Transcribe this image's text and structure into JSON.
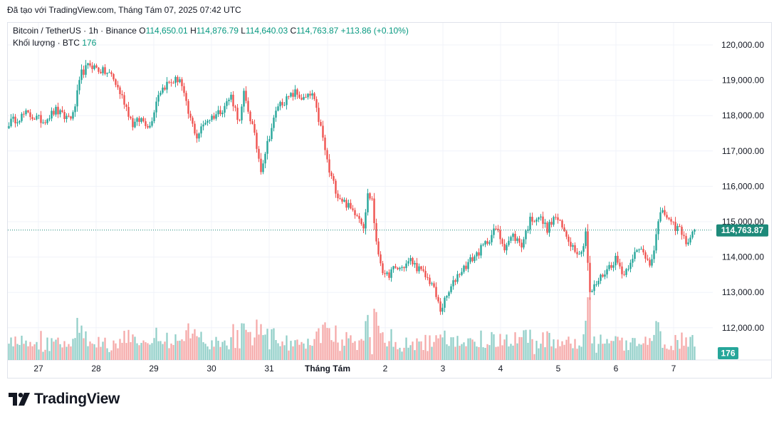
{
  "caption": "Đã tạo với TradingView.com, Tháng Tám 07, 2025 07:42 UTC",
  "legend": {
    "symbol": "Bitcoin / TetherUS · 1h · Binance",
    "o_label": "O",
    "o": "114,650.01",
    "h_label": "H",
    "h": "114,876.79",
    "l_label": "L",
    "l": "114,640.03",
    "c_label": "C",
    "c": "114,763.87",
    "change": "+113.86 (+0.10%)",
    "volume_label": "Khối lượng · BTC",
    "volume": "176"
  },
  "logo_text": "TradingView",
  "colors": {
    "up": "#26a69a",
    "down": "#ef5350",
    "vol_up": "#90cec7",
    "vol_down": "#f5a7a6",
    "grid": "#f0f3fa",
    "last_price": "#1e8a7a"
  },
  "chart_data": {
    "type": "candlestick",
    "title": "Bitcoin / TetherUS · 1h · Binance",
    "ylim": [
      111300,
      120600
    ],
    "y_ticks": [
      112000,
      113000,
      114000,
      115000,
      116000,
      117000,
      118000,
      119000,
      120000
    ],
    "y_tick_labels": [
      "112,000.00",
      "113,000.00",
      "114,000.00",
      "115,000.00",
      "116,000.00",
      "117,000.00",
      "118,000.00",
      "119,000.00",
      "120,000.00"
    ],
    "x_ticks": [
      "27",
      "28",
      "29",
      "30",
      "31",
      "Tháng Tám",
      "2",
      "3",
      "4",
      "5",
      "6",
      "7"
    ],
    "last_price": 114763.87,
    "last_price_label": "114,763.87",
    "last_volume_label": "176",
    "anchors": [
      [
        0,
        117800
      ],
      [
        8,
        118050
      ],
      [
        16,
        117850
      ],
      [
        22,
        118150
      ],
      [
        26,
        117950
      ],
      [
        30,
        118000
      ],
      [
        34,
        119200
      ],
      [
        38,
        119450
      ],
      [
        42,
        119300
      ],
      [
        48,
        119150
      ],
      [
        54,
        118400
      ],
      [
        58,
        117750
      ],
      [
        62,
        117900
      ],
      [
        66,
        117700
      ],
      [
        70,
        118650
      ],
      [
        74,
        118900
      ],
      [
        80,
        119050
      ],
      [
        84,
        118050
      ],
      [
        88,
        117400
      ],
      [
        92,
        117850
      ],
      [
        96,
        118000
      ],
      [
        100,
        118200
      ],
      [
        104,
        118550
      ],
      [
        108,
        117800
      ],
      [
        110,
        118600
      ],
      [
        114,
        117700
      ],
      [
        118,
        116500
      ],
      [
        122,
        117450
      ],
      [
        126,
        118300
      ],
      [
        130,
        118450
      ],
      [
        134,
        118650
      ],
      [
        138,
        118450
      ],
      [
        142,
        118600
      ],
      [
        146,
        117650
      ],
      [
        150,
        116400
      ],
      [
        154,
        115750
      ],
      [
        158,
        115500
      ],
      [
        160,
        115350
      ],
      [
        163,
        115250
      ],
      [
        166,
        114900
      ],
      [
        168,
        115750
      ],
      [
        170,
        115650
      ],
      [
        172,
        114350
      ],
      [
        176,
        113400
      ],
      [
        180,
        113650
      ],
      [
        184,
        113700
      ],
      [
        188,
        113900
      ],
      [
        192,
        113650
      ],
      [
        198,
        113250
      ],
      [
        202,
        112500
      ],
      [
        206,
        113000
      ],
      [
        210,
        113500
      ],
      [
        216,
        113900
      ],
      [
        220,
        114150
      ],
      [
        224,
        114450
      ],
      [
        228,
        114800
      ],
      [
        232,
        114300
      ],
      [
        236,
        114600
      ],
      [
        240,
        114350
      ],
      [
        244,
        115050
      ],
      [
        248,
        115150
      ],
      [
        252,
        114800
      ],
      [
        256,
        115150
      ],
      [
        260,
        114700
      ],
      [
        264,
        114300
      ],
      [
        268,
        114100
      ],
      [
        270,
        114750
      ],
      [
        272,
        112950
      ],
      [
        276,
        113350
      ],
      [
        280,
        113650
      ],
      [
        284,
        113950
      ],
      [
        288,
        113500
      ],
      [
        292,
        114050
      ],
      [
        296,
        114200
      ],
      [
        300,
        113850
      ],
      [
        302,
        114250
      ],
      [
        304,
        114950
      ],
      [
        306,
        115350
      ],
      [
        310,
        114900
      ],
      [
        314,
        114800
      ],
      [
        316,
        114500
      ],
      [
        318,
        114450
      ],
      [
        321,
        114760
      ]
    ]
  }
}
